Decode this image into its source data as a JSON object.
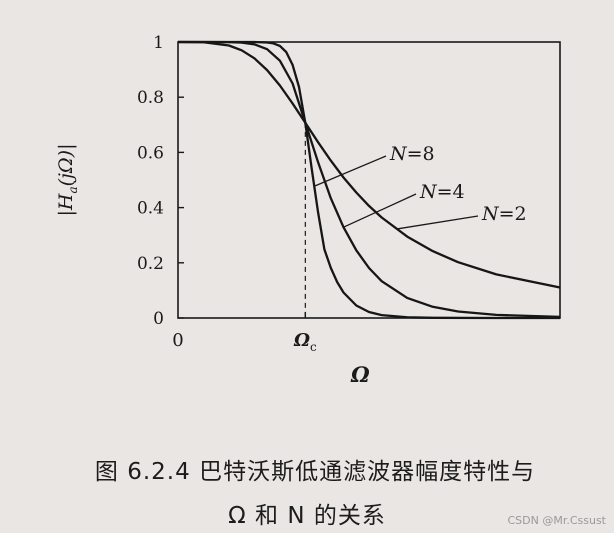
{
  "chart_data": {
    "type": "line",
    "xlabel": "Ω",
    "ylabel": "|H_a(jΩ)|",
    "x_ticks": [
      {
        "value": 0,
        "label": "0"
      },
      {
        "value": 1,
        "label": "Ω_c"
      }
    ],
    "y_ticks": [
      0,
      0.2,
      0.4,
      0.6,
      0.8,
      1
    ],
    "xlim": [
      0,
      3.0
    ],
    "ylim": [
      0,
      1
    ],
    "grid": false,
    "cutoff_marker": {
      "x": 1,
      "style": "dashed"
    },
    "series": [
      {
        "name": "N=8",
        "x": [
          0,
          0.2,
          0.4,
          0.5,
          0.6,
          0.7,
          0.75,
          0.8,
          0.85,
          0.9,
          0.95,
          1.0,
          1.05,
          1.1,
          1.15,
          1.2,
          1.25,
          1.3,
          1.4,
          1.5,
          1.6,
          1.8,
          2.0,
          2.5,
          3.0
        ],
        "values": [
          1,
          1,
          1,
          1,
          0.9999,
          0.9983,
          0.9951,
          0.9859,
          0.9636,
          0.9169,
          0.8368,
          0.7071,
          0.5408,
          0.3822,
          0.2486,
          0.1817,
          0.1302,
          0.0923,
          0.0453,
          0.0217,
          0.0105,
          0.0026,
          0.0007,
          0.0001,
          0
        ]
      },
      {
        "name": "N=4",
        "x": [
          0,
          0.2,
          0.4,
          0.5,
          0.6,
          0.7,
          0.8,
          0.9,
          1.0,
          1.1,
          1.2,
          1.3,
          1.4,
          1.5,
          1.6,
          1.8,
          2.0,
          2.2,
          2.5,
          3.0
        ],
        "values": [
          1,
          1,
          0.9997,
          0.998,
          0.9917,
          0.9739,
          0.9322,
          0.8498,
          0.7071,
          0.564,
          0.4341,
          0.329,
          0.2452,
          0.1812,
          0.1332,
          0.0728,
          0.0407,
          0.0236,
          0.0114,
          0.0041
        ]
      },
      {
        "name": "N=2",
        "x": [
          0,
          0.2,
          0.4,
          0.5,
          0.6,
          0.7,
          0.8,
          0.9,
          1.0,
          1.1,
          1.2,
          1.3,
          1.4,
          1.5,
          1.6,
          1.8,
          2.0,
          2.2,
          2.5,
          3.0
        ],
        "values": [
          1,
          0.9992,
          0.9874,
          0.9701,
          0.941,
          0.8983,
          0.8423,
          0.7772,
          0.7071,
          0.637,
          0.5702,
          0.5092,
          0.4546,
          0.4061,
          0.3641,
          0.295,
          0.2425,
          0.2022,
          0.1581,
          0.1104
        ]
      }
    ],
    "annotations": [
      {
        "label": "N",
        "value": "=8",
        "series": "N=8",
        "at_x": 1.07
      },
      {
        "label": "N",
        "value": "=4",
        "series": "N=4",
        "at_x": 1.3
      },
      {
        "label": "N",
        "value": "=2",
        "series": "N=2",
        "at_x": 1.72
      }
    ]
  },
  "caption": {
    "line1": "图 6.2.4   巴特沃斯低通滤波器幅度特性与",
    "line2": "Ω 和 N 的关系"
  },
  "watermark": "CSDN @Mr.Cssust"
}
